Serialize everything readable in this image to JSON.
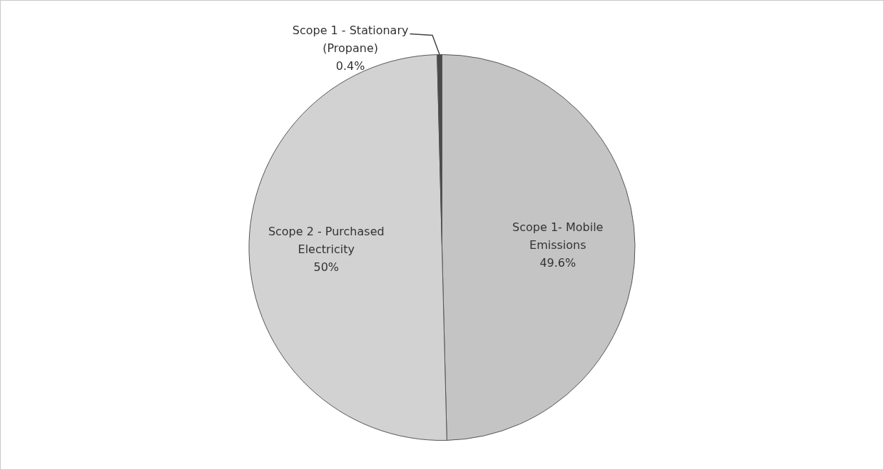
{
  "chart_data": {
    "type": "pie",
    "categories": [
      "Scope 1- Mobile Emissions",
      "Scope 2 - Purchased Electricity",
      "Scope 1 - Stationary (Propane)"
    ],
    "values": [
      49.6,
      50,
      0.4
    ],
    "value_labels": [
      "49.6%",
      "50%",
      "0.4%"
    ],
    "colors": [
      "#c4c4c4",
      "#d2d2d2",
      "#4a4a4a"
    ],
    "legend": false
  }
}
